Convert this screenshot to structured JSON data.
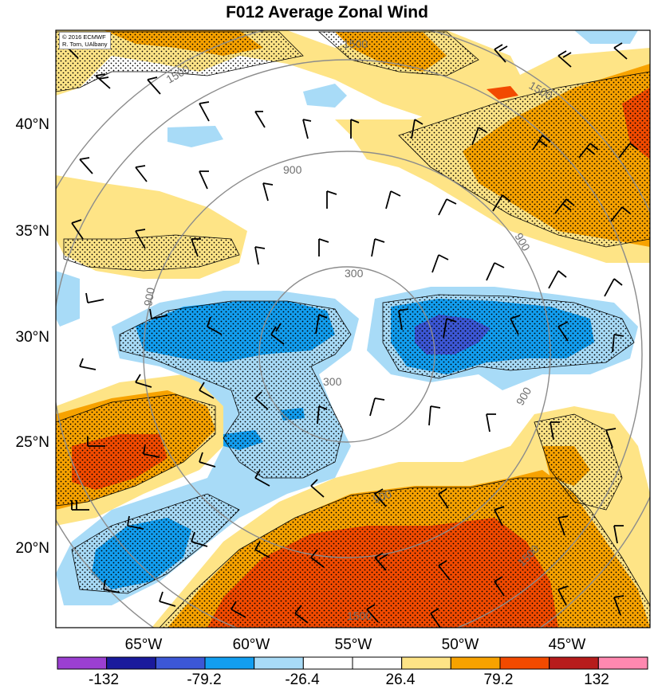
{
  "title": "F012 Average Zonal Wind",
  "credit": {
    "line1": "© 2016 ECMWF",
    "line2": "R. Torn, UAlbany"
  },
  "lat_labels": [
    "40°N",
    "35°N",
    "30°N",
    "25°N",
    "20°N"
  ],
  "lon_labels": [
    "65°W",
    "60°W",
    "55°W",
    "50°W",
    "45°W"
  ],
  "range_ring_labels": [
    "300",
    "300",
    "900",
    "900",
    "900",
    "900",
    "900",
    "1500",
    "1500",
    "1500",
    "1500",
    "1500"
  ],
  "colorbar": {
    "tick_labels": [
      "-132",
      "-79.2",
      "-26.4",
      "26.4",
      "79.2",
      "132"
    ],
    "colors": [
      "#9b3fd1",
      "#1a1a9c",
      "#3c57d6",
      "#129ef0",
      "#a8dbf7",
      "#ffffff",
      "#ffffff",
      "#fee486",
      "#f7a200",
      "#f24a00",
      "#b71c1c",
      "#ff88b0"
    ]
  },
  "shading_colors": {
    "light_blue": "#a8dbf7",
    "blue": "#129ef0",
    "dark_blue": "#3c57d6",
    "light_yellow": "#fee486",
    "orange": "#f7a200",
    "red_orange": "#f24a00",
    "red": "#e02000"
  }
}
